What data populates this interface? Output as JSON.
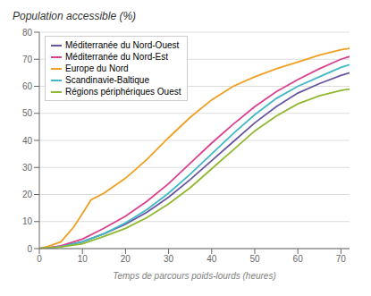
{
  "chart_data": {
    "type": "line",
    "title": "Population accessible (%)",
    "xlabel": "Temps de parcours poids-lourds (heures)",
    "xlim": [
      0,
      72
    ],
    "ylim": [
      0,
      80
    ],
    "xticks": [
      0,
      10,
      20,
      30,
      40,
      50,
      60,
      70
    ],
    "yticks": [
      0,
      10,
      20,
      30,
      40,
      50,
      60,
      70,
      80
    ],
    "grid": "y",
    "legend": "upper left",
    "series": [
      {
        "name": "Méditerranée du Nord-Ouest",
        "color": "#6855a0",
        "x": [
          0,
          2,
          5,
          10,
          15,
          20,
          25,
          30,
          35,
          40,
          45,
          50,
          55,
          60,
          65,
          70,
          72
        ],
        "values": [
          0,
          0.3,
          0.8,
          2.5,
          5.5,
          9.0,
          13.5,
          19.0,
          25.5,
          32.5,
          39.5,
          46.5,
          52.5,
          57.5,
          61.0,
          64.0,
          65.0
        ]
      },
      {
        "name": "Méditerranée du Nord-Est",
        "color": "#d94090",
        "x": [
          0,
          2,
          5,
          10,
          15,
          20,
          25,
          30,
          35,
          40,
          45,
          50,
          55,
          60,
          65,
          70,
          72
        ],
        "values": [
          0,
          0.3,
          1.0,
          3.5,
          7.5,
          12.0,
          17.5,
          24.0,
          31.5,
          39.0,
          46.0,
          52.5,
          58.0,
          62.5,
          66.5,
          70.0,
          71.0
        ]
      },
      {
        "name": "Europe du Nord",
        "color": "#f0a020",
        "x": [
          0,
          2,
          5,
          8,
          10,
          12,
          15,
          20,
          25,
          30,
          35,
          40,
          45,
          50,
          55,
          60,
          65,
          70,
          72
        ],
        "values": [
          0,
          0.8,
          2.5,
          8.0,
          13.0,
          18.0,
          20.5,
          26.0,
          33.0,
          41.0,
          48.5,
          55.0,
          60.0,
          63.5,
          66.5,
          69.0,
          71.5,
          73.5,
          74.0
        ]
      },
      {
        "name": "Scandinavie-Baltique",
        "color": "#40b8c8",
        "x": [
          0,
          2,
          5,
          10,
          15,
          20,
          25,
          30,
          35,
          40,
          45,
          50,
          55,
          60,
          65,
          70,
          72
        ],
        "values": [
          0,
          0.2,
          0.7,
          2.5,
          5.5,
          9.5,
          14.5,
          20.5,
          27.5,
          35.0,
          42.5,
          49.5,
          55.5,
          60.0,
          63.5,
          67.0,
          68.0
        ]
      },
      {
        "name": "Régions périphériques Ouest",
        "color": "#90b830",
        "x": [
          0,
          2,
          5,
          10,
          15,
          20,
          25,
          30,
          35,
          40,
          45,
          50,
          55,
          60,
          65,
          70,
          72
        ],
        "values": [
          0,
          0.2,
          0.6,
          1.8,
          4.5,
          7.5,
          11.5,
          16.5,
          22.5,
          29.5,
          36.5,
          43.5,
          49.0,
          53.5,
          56.5,
          58.5,
          59.0
        ]
      }
    ]
  }
}
